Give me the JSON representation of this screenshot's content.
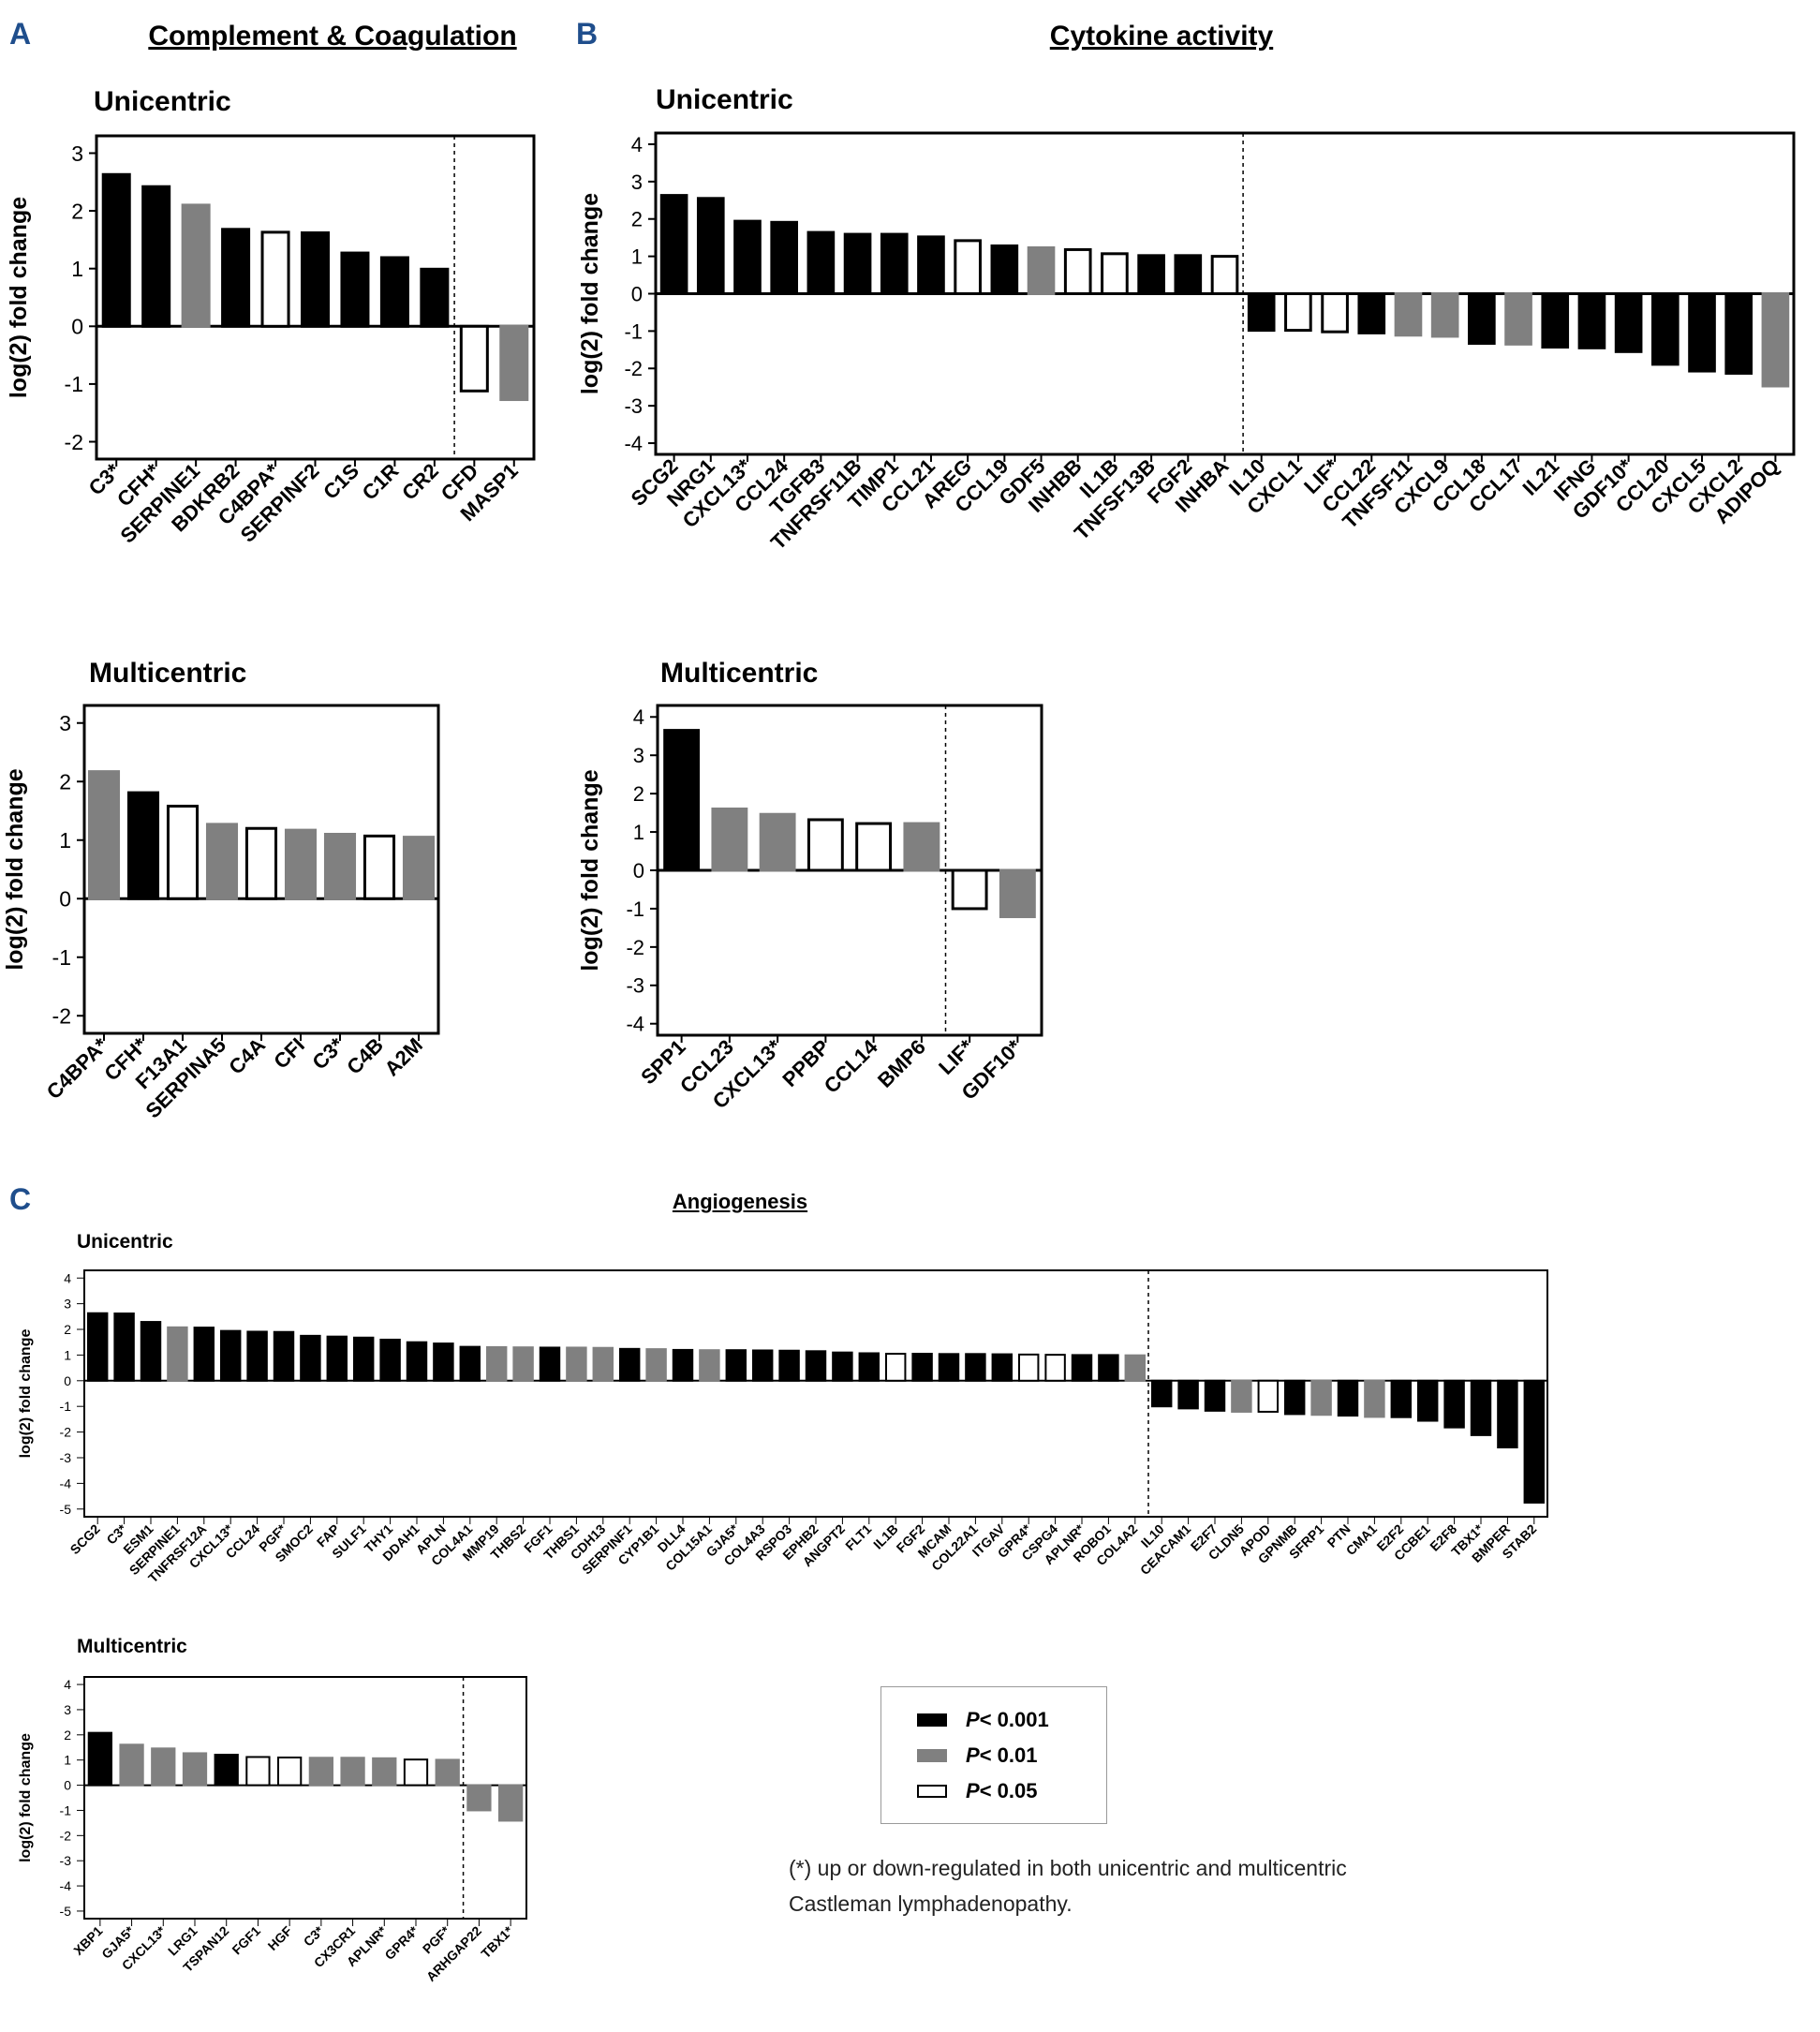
{
  "panels": {
    "A": {
      "letter": "A",
      "title": "Complement & Coagulation"
    },
    "B": {
      "letter": "B",
      "title": "Cytokine activity"
    },
    "C": {
      "letter": "C",
      "title": "Angiogenesis"
    }
  },
  "legend": {
    "items": [
      {
        "p": "P",
        "rest": "< 0.001",
        "color": "#000000"
      },
      {
        "p": "P",
        "rest": "< 0.01",
        "color": "#808080"
      },
      {
        "p": "P",
        "rest": "< 0.05",
        "color": "#ffffff"
      }
    ]
  },
  "footnote": "(*) up or down-regulated in both unicentric and multicentric Castleman lymphadenopathy.",
  "colors": {
    "black": "#000000",
    "gray": "#808080",
    "white": "#ffffff"
  },
  "chart_data": [
    {
      "id": "A-uni",
      "panel": "A",
      "type": "bar",
      "title": "Unicentric",
      "ylabel": "log(2) fold change",
      "ylim": [
        -2.3,
        3.3
      ],
      "yticks": [
        -2,
        -1,
        0,
        1,
        2,
        3
      ],
      "categories": [
        "C3*",
        "CFH*",
        "SERPINE1",
        "BDKRB2",
        "C4BPA*",
        "SERPINF2",
        "C1S",
        "C1R",
        "CR2",
        "CFD",
        "MASP1"
      ],
      "values": [
        2.63,
        2.42,
        2.1,
        1.68,
        1.63,
        1.62,
        1.27,
        1.19,
        0.99,
        -1.12,
        -1.27
      ],
      "significance": [
        "k",
        "k",
        "g",
        "k",
        "w",
        "k",
        "k",
        "k",
        "k",
        "w",
        "g"
      ],
      "divider_after": 8
    },
    {
      "id": "A-multi",
      "panel": "A",
      "type": "bar",
      "title": "Multicentric",
      "ylabel": "log(2) fold change",
      "ylim": [
        -2.3,
        3.3
      ],
      "yticks": [
        -2,
        -1,
        0,
        1,
        2,
        3
      ],
      "categories": [
        "C4BPA*",
        "CFH*",
        "F13A1",
        "SERPINA5",
        "C4A",
        "CFI",
        "C3*",
        "C4B",
        "A2M"
      ],
      "values": [
        2.17,
        1.81,
        1.58,
        1.27,
        1.2,
        1.17,
        1.1,
        1.07,
        1.05
      ],
      "significance": [
        "g",
        "k",
        "w",
        "g",
        "w",
        "g",
        "g",
        "w",
        "g"
      ],
      "divider_after": null
    },
    {
      "id": "B-uni",
      "panel": "B",
      "type": "bar",
      "title": "Unicentric",
      "ylabel": "log(2) fold change",
      "ylim": [
        -4.3,
        4.3
      ],
      "yticks": [
        -4,
        -3,
        -2,
        -1,
        0,
        1,
        2,
        3,
        4
      ],
      "categories": [
        "SCG2",
        "NRG1",
        "CXCL13*",
        "CCL24",
        "TGFB3",
        "TNFRSF11B",
        "TIMP1",
        "CCL21",
        "AREG",
        "CCL19",
        "GDF5",
        "INHBB",
        "IL1B",
        "TNFSF13B",
        "FGF2",
        "INHBA",
        "IL10",
        "CXCL1",
        "LIF*",
        "CCL22",
        "TNFSF11",
        "CXCL9",
        "CCL18",
        "CCL17",
        "IL21",
        "IFNG",
        "GDF10*",
        "CCL20",
        "CXCL5",
        "CXCL2",
        "ADIPOQ"
      ],
      "values": [
        2.63,
        2.55,
        1.94,
        1.91,
        1.64,
        1.59,
        1.59,
        1.52,
        1.42,
        1.28,
        1.23,
        1.18,
        1.07,
        1.02,
        1.02,
        1.0,
        -0.98,
        -0.98,
        -1.02,
        -1.05,
        -1.11,
        -1.14,
        -1.33,
        -1.35,
        -1.43,
        -1.45,
        -1.55,
        -1.89,
        -2.07,
        -2.13,
        -2.47
      ],
      "significance": [
        "k",
        "k",
        "k",
        "k",
        "k",
        "k",
        "k",
        "k",
        "w",
        "k",
        "g",
        "w",
        "w",
        "k",
        "k",
        "w",
        "k",
        "w",
        "w",
        "k",
        "g",
        "g",
        "k",
        "g",
        "k",
        "k",
        "k",
        "k",
        "k",
        "k",
        "g"
      ],
      "divider_after": 15
    },
    {
      "id": "B-multi",
      "panel": "B",
      "type": "bar",
      "title": "Multicentric",
      "ylabel": "log(2) fold change",
      "ylim": [
        -4.3,
        4.3
      ],
      "yticks": [
        -4,
        -3,
        -2,
        -1,
        0,
        1,
        2,
        3,
        4
      ],
      "categories": [
        "SPP1",
        "CCL23",
        "CXCL13*",
        "PPBP",
        "CCL14",
        "BMP6",
        "LIF*",
        "GDF10*"
      ],
      "values": [
        3.65,
        1.6,
        1.46,
        1.32,
        1.22,
        1.22,
        -1.0,
        -1.21
      ],
      "significance": [
        "k",
        "g",
        "g",
        "w",
        "w",
        "g",
        "w",
        "g"
      ],
      "divider_after": 5
    },
    {
      "id": "C-uni",
      "panel": "C",
      "type": "bar",
      "title": "Unicentric",
      "ylabel": "log(2) fold change",
      "ylim": [
        -5.3,
        4.3
      ],
      "yticks": [
        -5,
        -4,
        -3,
        -2,
        -1,
        0,
        1,
        2,
        3,
        4
      ],
      "categories": [
        "SCG2",
        "C3*",
        "ESM1",
        "SERPINE1",
        "TNFRSF12A",
        "CXCL13*",
        "CCL24",
        "PGF*",
        "SMOC2",
        "FAP",
        "SULF1",
        "THY1",
        "DDAH1",
        "APLN",
        "COL4A1",
        "MMP19",
        "THBS2",
        "FGF1",
        "THBS1",
        "CDH13",
        "SERPINF1",
        "CYP1B1",
        "DLL4",
        "COL15A1",
        "GJA5*",
        "COL4A3",
        "RSPO3",
        "EPHB2",
        "ANGPT2",
        "FLT1",
        "IL1B",
        "FGF2",
        "MCAM",
        "COL22A1",
        "ITGAV",
        "GPR4*",
        "CSPG4",
        "APLNR*",
        "ROBO1",
        "COL4A2",
        "IL10",
        "CEACAM1",
        "E2F7",
        "CLDN5",
        "APOD",
        "GPNMB",
        "SFRP1",
        "PTN",
        "CMA1",
        "E2F2",
        "CCBE1",
        "E2F8",
        "TBX1*",
        "BMPER",
        "STAB2"
      ],
      "values": [
        2.63,
        2.62,
        2.29,
        2.08,
        2.07,
        1.94,
        1.91,
        1.9,
        1.75,
        1.72,
        1.68,
        1.6,
        1.5,
        1.45,
        1.32,
        1.31,
        1.3,
        1.29,
        1.29,
        1.28,
        1.24,
        1.23,
        1.2,
        1.19,
        1.19,
        1.18,
        1.17,
        1.15,
        1.1,
        1.07,
        1.05,
        1.05,
        1.04,
        1.04,
        1.03,
        1.02,
        1.01,
        1.0,
        1.0,
        0.99,
        -1.0,
        -1.08,
        -1.17,
        -1.21,
        -1.21,
        -1.3,
        -1.33,
        -1.36,
        -1.41,
        -1.42,
        -1.56,
        -1.82,
        -2.12,
        -2.6,
        -4.75
      ],
      "significance": [
        "k",
        "k",
        "k",
        "g",
        "k",
        "k",
        "k",
        "k",
        "k",
        "k",
        "k",
        "k",
        "k",
        "k",
        "k",
        "g",
        "g",
        "k",
        "g",
        "g",
        "k",
        "g",
        "k",
        "g",
        "k",
        "k",
        "k",
        "k",
        "k",
        "k",
        "w",
        "k",
        "k",
        "k",
        "k",
        "w",
        "w",
        "k",
        "k",
        "g",
        "k",
        "k",
        "k",
        "g",
        "w",
        "k",
        "g",
        "k",
        "g",
        "k",
        "k",
        "k",
        "k",
        "k",
        "k"
      ],
      "divider_after": 39
    },
    {
      "id": "C-multi",
      "panel": "C",
      "type": "bar",
      "title": "Multicentric",
      "ylabel": "log(2) fold change",
      "ylim": [
        -5.3,
        4.3
      ],
      "yticks": [
        -5,
        -4,
        -3,
        -2,
        -1,
        0,
        1,
        2,
        3,
        4
      ],
      "categories": [
        "XBP1",
        "GJA5*",
        "CXCL13*",
        "LRG1",
        "TSPAN12",
        "FGF1",
        "HGF",
        "C3*",
        "CX3CR1",
        "APLNR*",
        "GPR4*",
        "PGF*",
        "ARHGAP22",
        "TBX1*"
      ],
      "values": [
        2.08,
        1.61,
        1.46,
        1.27,
        1.21,
        1.12,
        1.1,
        1.09,
        1.09,
        1.07,
        1.02,
        1.01,
        -1.0,
        -1.41
      ],
      "significance": [
        "k",
        "g",
        "g",
        "g",
        "k",
        "w",
        "w",
        "g",
        "g",
        "g",
        "w",
        "g",
        "g",
        "g"
      ],
      "divider_after": 11
    }
  ]
}
